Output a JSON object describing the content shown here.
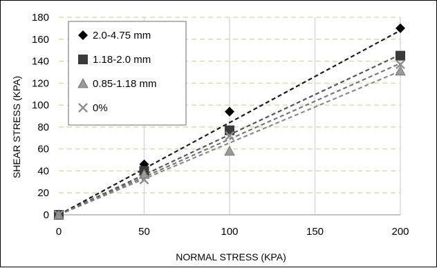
{
  "chart_data": {
    "type": "scatter",
    "title": "",
    "xlabel": "NORMAL STRESS (KPA)",
    "ylabel": "SHEAR STRESS (KPA)",
    "xlim": [
      0,
      200
    ],
    "ylim": [
      0,
      180
    ],
    "xticks": [
      0,
      50,
      100,
      150,
      200
    ],
    "yticks": [
      0,
      20,
      40,
      60,
      80,
      100,
      120,
      140,
      160,
      180
    ],
    "grid": {
      "vertical": "solid",
      "horizontal": "dashed"
    },
    "legend_position": "top-left",
    "series": [
      {
        "name": "2.0-4.75 mm",
        "marker": "diamond",
        "color": "#000000",
        "trendline_color": "#1a1a1a",
        "x": [
          0,
          50,
          100,
          200
        ],
        "y": [
          0,
          46,
          94,
          170
        ],
        "trendline": [
          0,
          0.84
        ]
      },
      {
        "name": "1.18-2.0 mm",
        "marker": "square",
        "color": "#3a3a3a",
        "trendline_color": "#555555",
        "x": [
          0,
          50,
          100,
          200
        ],
        "y": [
          0,
          40,
          77,
          145
        ],
        "trendline": [
          0,
          0.73
        ]
      },
      {
        "name": "0.85-1.18 mm",
        "marker": "triangle",
        "color": "#9a9a9a",
        "trendline_color": "#8a8a8a",
        "x": [
          0,
          50,
          100,
          200
        ],
        "y": [
          0,
          37,
          58,
          131
        ],
        "trendline": [
          0,
          0.655
        ]
      },
      {
        "name": "0%",
        "marker": "x",
        "color": "#8c8c8c",
        "trendline_color": "#777777",
        "x": [
          0,
          50,
          100,
          200
        ],
        "y": [
          0,
          32,
          72,
          137
        ],
        "trendline": [
          0,
          0.69
        ]
      }
    ]
  }
}
